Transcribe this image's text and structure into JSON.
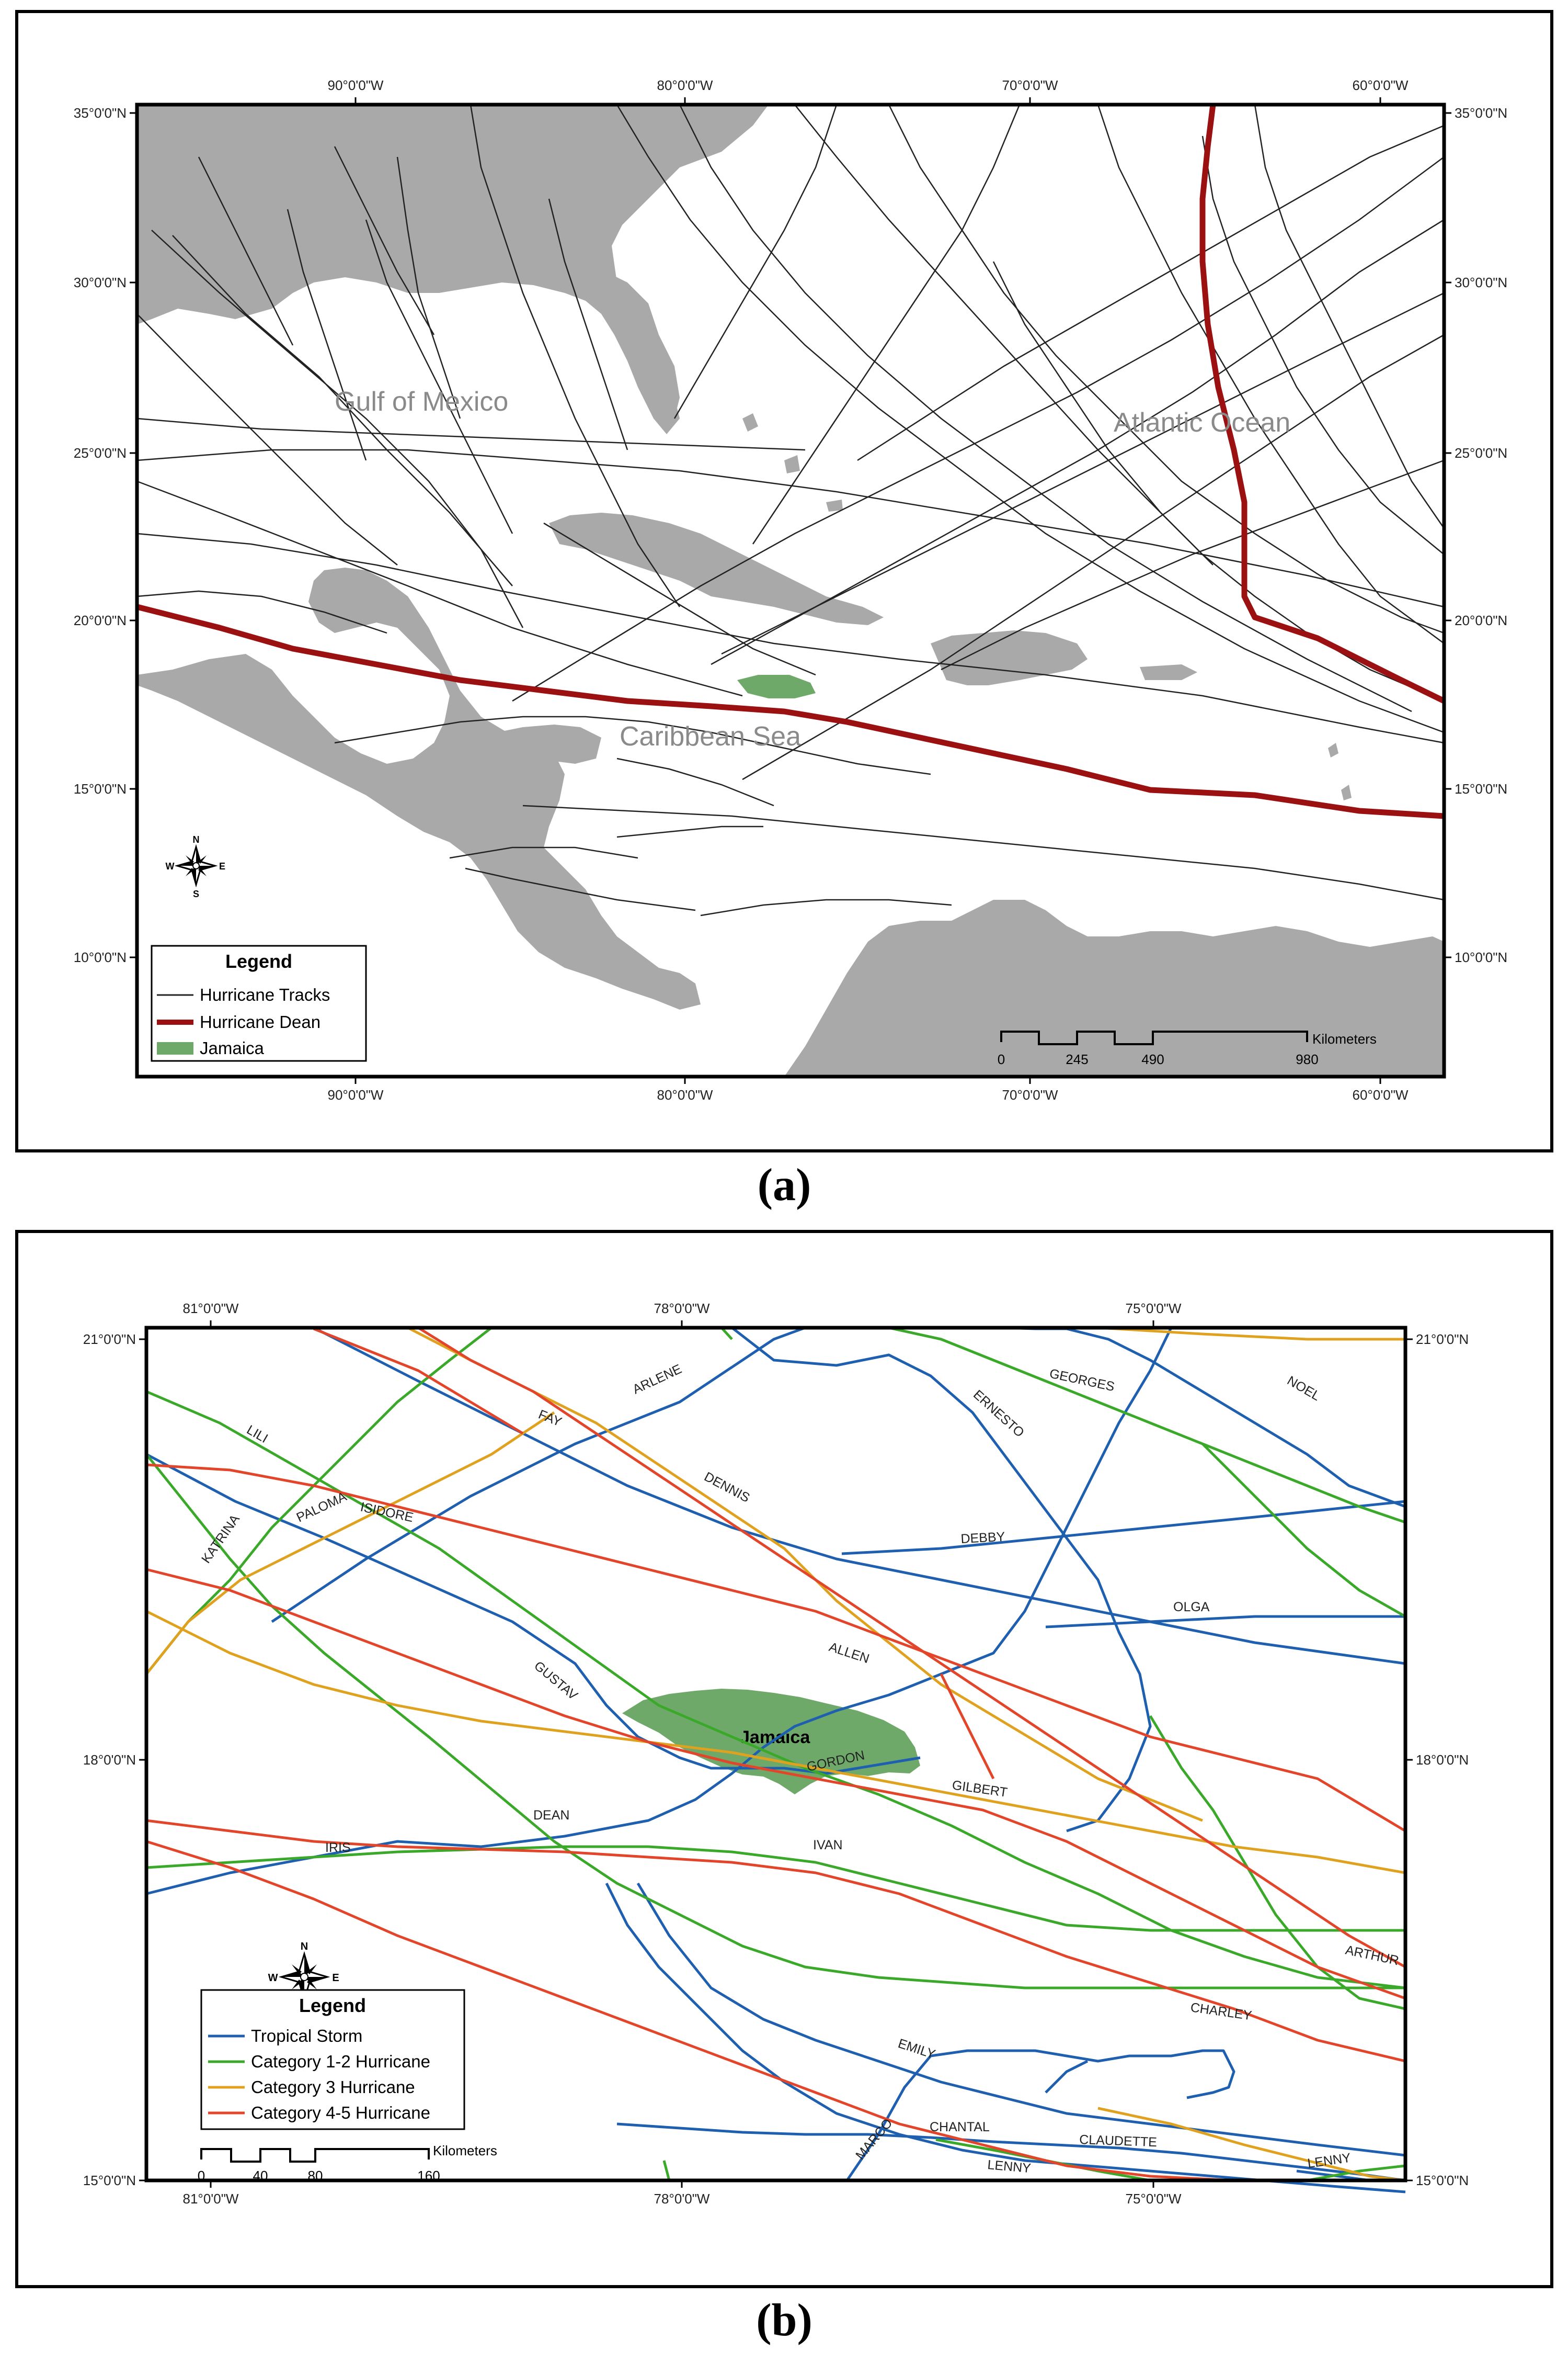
{
  "panel_a": {
    "caption": "(a)",
    "top_lon_labels": [
      "90°0'0\"W",
      "80°0'0\"W",
      "70°0'0\"W",
      "60°0'0\"W"
    ],
    "bottom_lon_labels": [
      "90°0'0\"W",
      "80°0'0\"W",
      "70°0'0\"W",
      "60°0'0\"W"
    ],
    "lat_labels": [
      "35°0'0\"N",
      "30°0'0\"N",
      "25°0'0\"N",
      "20°0'0\"N",
      "15°0'0\"N",
      "10°0'0\"N"
    ],
    "place_labels": {
      "gulf": "Gulf of Mexico",
      "atlantic": "Atlantic Ocean",
      "caribbean": "Caribbean Sea"
    },
    "legend": {
      "title": "Legend",
      "items": [
        {
          "label": "Hurricane Tracks",
          "color": "#222222"
        },
        {
          "label": "Hurricane Dean",
          "color": "#9b1010"
        },
        {
          "label": "Jamaica",
          "color": "#6fa96a"
        }
      ]
    },
    "scale": {
      "unit": "Kilometers",
      "ticks": [
        "0",
        "245",
        "490",
        "980"
      ]
    },
    "compass": {
      "n": "N",
      "s": "S",
      "e": "E",
      "w": "W"
    }
  },
  "panel_b": {
    "caption": "(b)",
    "top_lon_labels": [
      "81°0'0\"W",
      "78°0'0\"W",
      "75°0'0\"W"
    ],
    "bottom_lon_labels": [
      "81°0'0\"W",
      "78°0'0\"W",
      "75°0'0\"W"
    ],
    "lat_labels": [
      "21°0'0\"N",
      "18°0'0\"N",
      "15°0'0\"N"
    ],
    "island_label": "Jamaica",
    "legend": {
      "title": "Legend",
      "items": [
        {
          "label": "Tropical Storm",
          "color": "#1f5fb0"
        },
        {
          "label": "Category 1-2 Hurricane",
          "color": "#3aa829"
        },
        {
          "label": "Category 3 Hurricane",
          "color": "#e0a21e"
        },
        {
          "label": "Category 4-5 Hurricane",
          "color": "#e2452a"
        }
      ]
    },
    "scale": {
      "unit": "Kilometers",
      "ticks": [
        "0",
        "40",
        "80",
        "160"
      ]
    },
    "compass": {
      "n": "N",
      "s": "S",
      "e": "E",
      "w": "W"
    },
    "storm_labels": {
      "arlene": "ARLENE",
      "fay": "FAY",
      "lili": "LILI",
      "dennis": "DENNIS",
      "ernesto": "ERNESTO",
      "georges": "GEORGES",
      "noel": "NOEL",
      "debby": "DEBBY",
      "katrina": "KATRINA",
      "paloma": "PALOMA",
      "isidore": "ISIDORE",
      "olga": "OLGA",
      "allen": "ALLEN",
      "gustav": "GUSTAV",
      "gordon": "GORDON",
      "gilbert": "GILBERT",
      "dean": "DEAN",
      "iris": "IRIS",
      "ivan": "IVAN",
      "arthur": "ARTHUR",
      "charley": "CHARLEY",
      "emily": "EMILY",
      "marco": "MARCO",
      "chantal": "CHANTAL",
      "claudette": "CLAUDETTE",
      "lenny_a": "LENNY",
      "lenny_b": "LENNY"
    }
  }
}
